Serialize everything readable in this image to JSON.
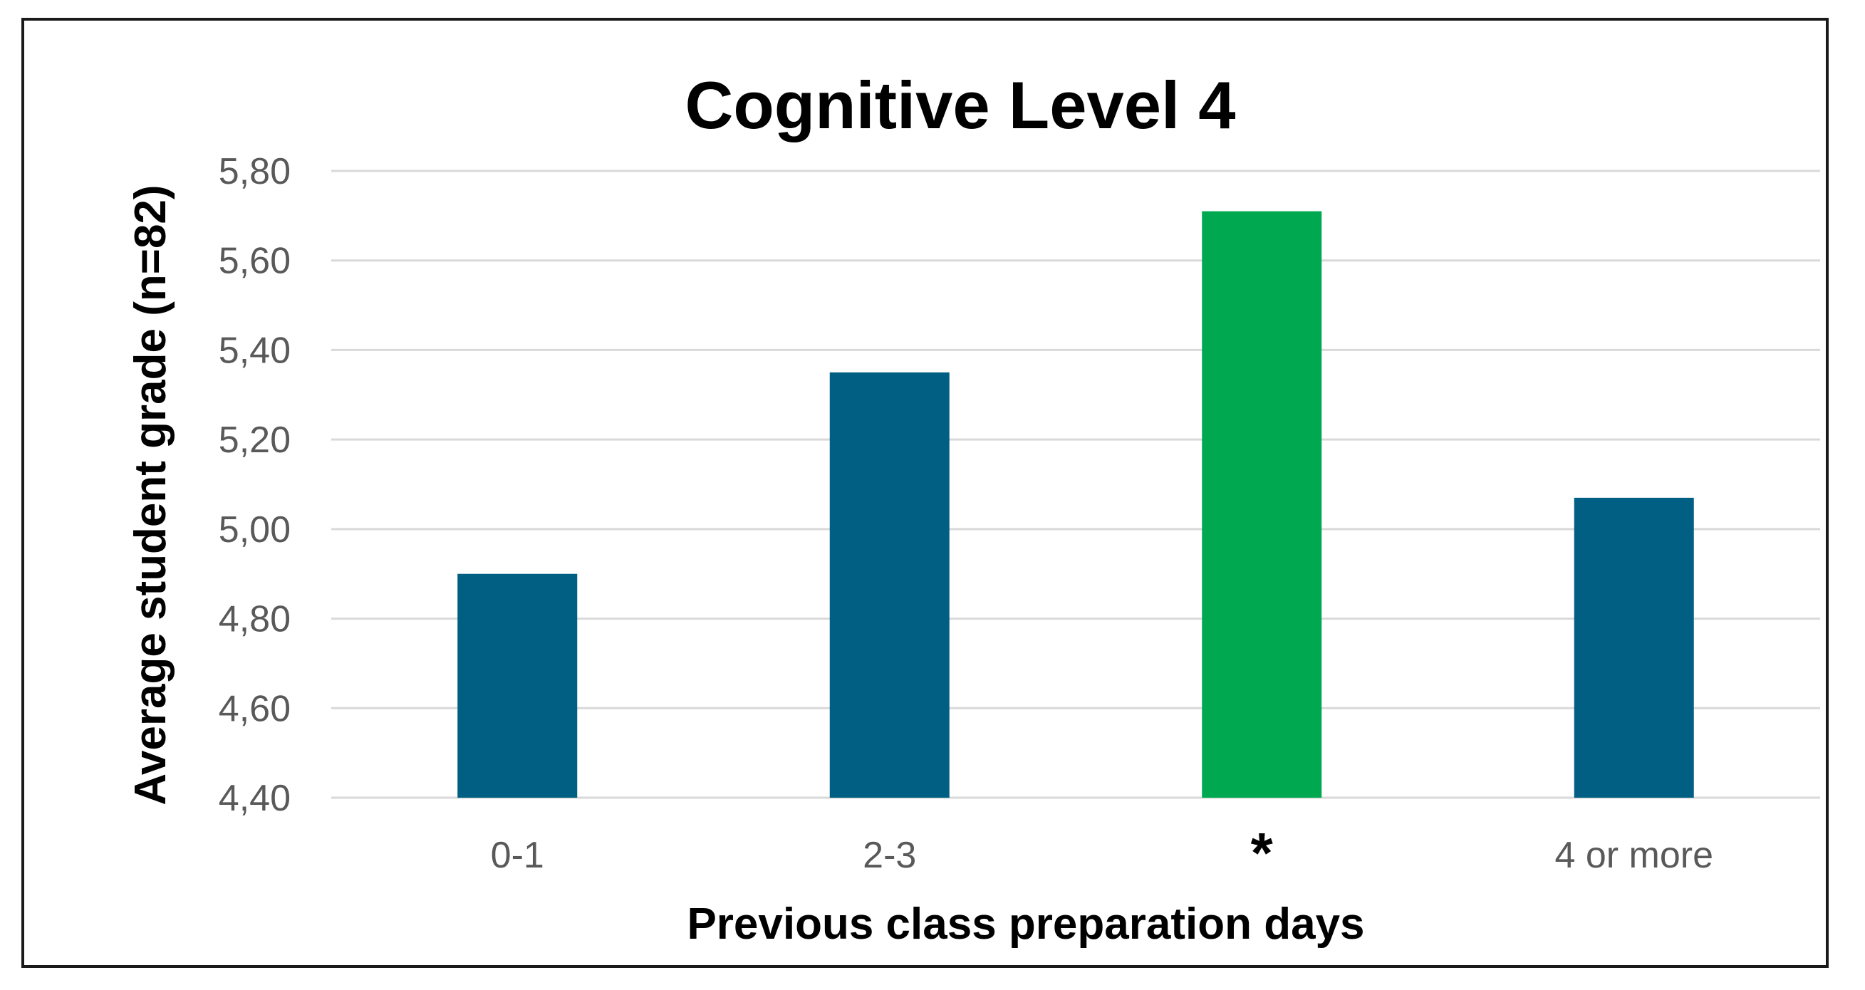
{
  "chart_data": {
    "type": "bar",
    "title": "Cognitive Level 4",
    "xlabel": "Previous class preparation days",
    "ylabel": "Average student grade (n=82)",
    "categories": [
      "0-1",
      "2-3",
      "*",
      "4 or more"
    ],
    "values": [
      4.9,
      5.35,
      5.71,
      5.07
    ],
    "ylim": [
      4.4,
      5.8
    ],
    "yticks": [
      "4,40",
      "4,60",
      "4,80",
      "5,00",
      "5,20",
      "5,40",
      "5,60",
      "5,80"
    ],
    "grid": true,
    "legend": "none",
    "colors": [
      "#005f83",
      "#005f83",
      "#00a84f",
      "#005f83"
    ]
  }
}
